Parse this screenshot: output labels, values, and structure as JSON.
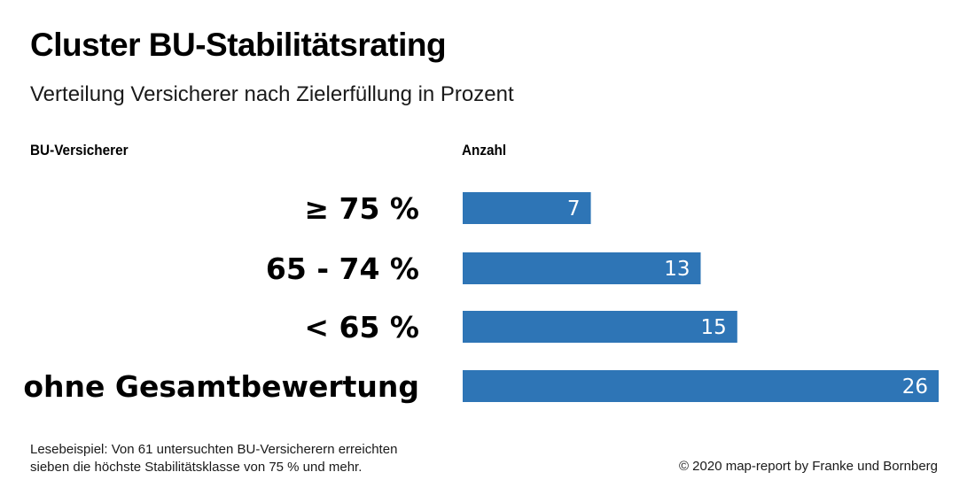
{
  "title": "Cluster BU-Stabilitätsrating",
  "subtitle": "Verteilung Versicherer nach Zielerfüllung in Prozent",
  "headers": {
    "left": "BU-Versicherer",
    "right": "Anzahl"
  },
  "footnote": {
    "line1": "Lesebeispiel: Von 61 untersuchten BU-Versicherern erreichten",
    "line2": "sieben die höchste Stabilitätsklasse von 75 % und mehr."
  },
  "copyright": "© 2020 map-report by Franke und Bornberg",
  "colors": {
    "bar": "#2e75b6",
    "label_text": "#ffffff"
  },
  "chart_data": {
    "type": "bar",
    "orientation": "horizontal",
    "title": "Cluster BU-Stabilitätsrating",
    "xlabel": "Anzahl",
    "ylabel": "BU-Versicherer",
    "categories": [
      "≥ 75 %",
      "65 - 74 %",
      "< 65 %",
      "ohne Gesamtbewertung"
    ],
    "values": [
      7,
      13,
      15,
      26
    ],
    "xlim": [
      0,
      26
    ],
    "grid": false
  }
}
